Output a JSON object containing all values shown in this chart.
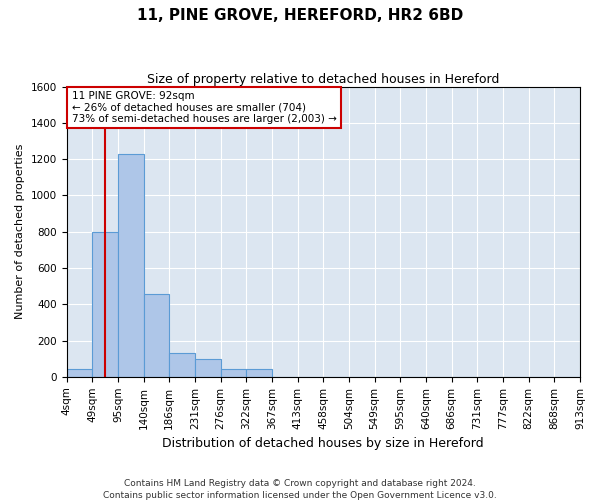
{
  "title": "11, PINE GROVE, HEREFORD, HR2 6BD",
  "subtitle": "Size of property relative to detached houses in Hereford",
  "xlabel": "Distribution of detached houses by size in Hereford",
  "ylabel": "Number of detached properties",
  "footnote1": "Contains HM Land Registry data © Crown copyright and database right 2024.",
  "footnote2": "Contains public sector information licensed under the Open Government Licence v3.0.",
  "bin_labels": [
    "4sqm",
    "49sqm",
    "95sqm",
    "140sqm",
    "186sqm",
    "231sqm",
    "276sqm",
    "322sqm",
    "367sqm",
    "413sqm",
    "458sqm",
    "504sqm",
    "549sqm",
    "595sqm",
    "640sqm",
    "686sqm",
    "731sqm",
    "777sqm",
    "822sqm",
    "868sqm",
    "913sqm"
  ],
  "bar_values": [
    45,
    800,
    1230,
    455,
    130,
    100,
    45,
    45,
    0,
    0,
    0,
    0,
    0,
    0,
    0,
    0,
    0,
    0,
    0,
    0
  ],
  "bar_color": "#aec6e8",
  "bar_edge_color": "#5b9bd5",
  "background_color": "#dce6f1",
  "grid_color": "#ffffff",
  "ylim": [
    0,
    1600
  ],
  "yticks": [
    0,
    200,
    400,
    600,
    800,
    1000,
    1200,
    1400,
    1600
  ],
  "property_line_bin": 1.5,
  "property_line_color": "#cc0000",
  "annotation_text": "11 PINE GROVE: 92sqm\n← 26% of detached houses are smaller (704)\n73% of semi-detached houses are larger (2,003) →",
  "annotation_box_color": "#cc0000",
  "title_fontsize": 11,
  "subtitle_fontsize": 9,
  "ylabel_fontsize": 8,
  "xlabel_fontsize": 9,
  "tick_fontsize": 7.5,
  "footnote_fontsize": 6.5
}
